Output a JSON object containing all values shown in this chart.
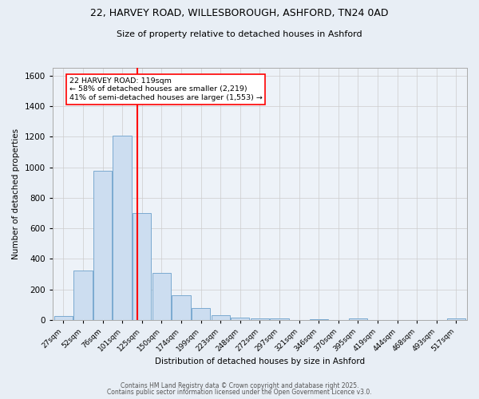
{
  "title_line1": "22, HARVEY ROAD, WILLESBOROUGH, ASHFORD, TN24 0AD",
  "title_line2": "Size of property relative to detached houses in Ashford",
  "xlabel": "Distribution of detached houses by size in Ashford",
  "ylabel": "Number of detached properties",
  "bar_labels": [
    "27sqm",
    "52sqm",
    "76sqm",
    "101sqm",
    "125sqm",
    "150sqm",
    "174sqm",
    "199sqm",
    "223sqm",
    "248sqm",
    "272sqm",
    "297sqm",
    "321sqm",
    "346sqm",
    "370sqm",
    "395sqm",
    "419sqm",
    "444sqm",
    "468sqm",
    "493sqm",
    "517sqm"
  ],
  "bar_values": [
    25,
    325,
    975,
    1210,
    700,
    310,
    160,
    75,
    30,
    15,
    10,
    8,
    0,
    5,
    0,
    12,
    0,
    0,
    0,
    0,
    10
  ],
  "bar_color": "#ccddf0",
  "bar_edge_color": "#7aaad0",
  "reference_line_color": "red",
  "annotation_title": "22 HARVEY ROAD: 119sqm",
  "annotation_line1": "← 58% of detached houses are smaller (2,219)",
  "annotation_line2": "41% of semi-detached houses are larger (1,553) →",
  "annotation_box_color": "white",
  "annotation_box_edge": "red",
  "ylim": [
    0,
    1650
  ],
  "yticks": [
    0,
    200,
    400,
    600,
    800,
    1000,
    1200,
    1400,
    1600
  ],
  "grid_color": "#cccccc",
  "bg_color": "#e8eef5",
  "plot_bg_color": "#edf2f8",
  "footer_line1": "Contains HM Land Registry data © Crown copyright and database right 2025.",
  "footer_line2": "Contains public sector information licensed under the Open Government Licence v3.0."
}
